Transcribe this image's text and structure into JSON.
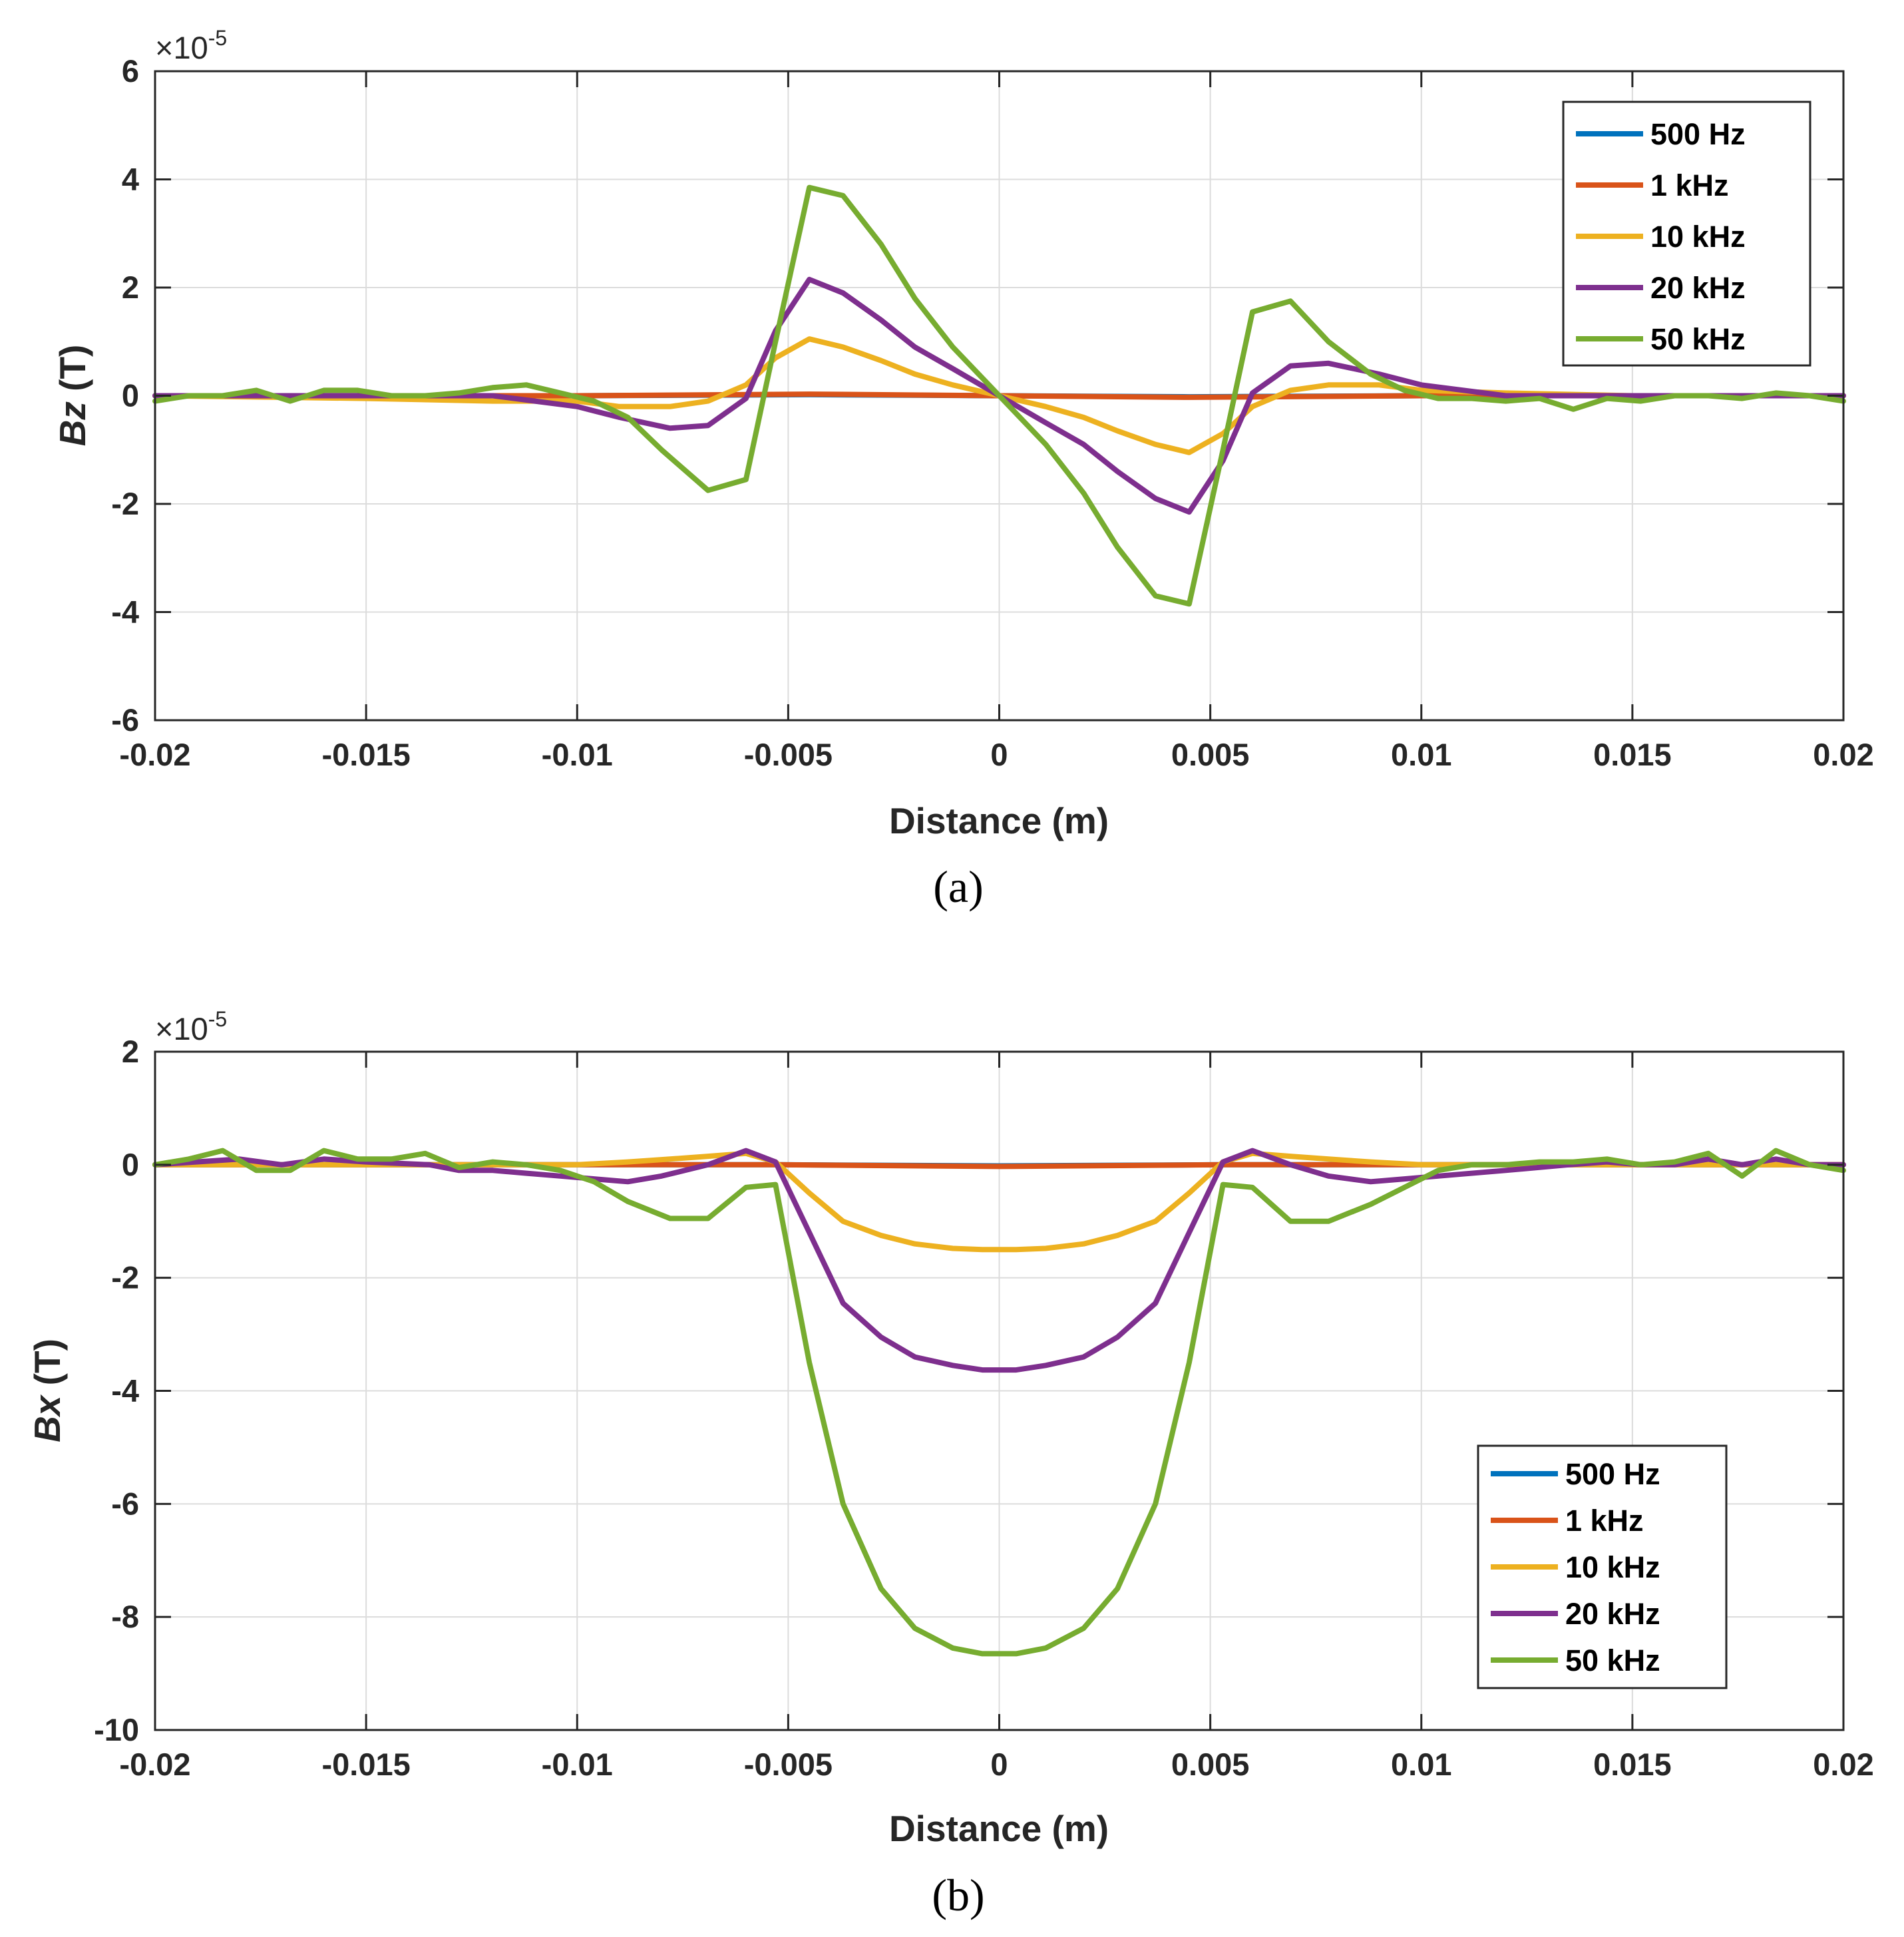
{
  "chart_data": [
    {
      "type": "line",
      "id": "a",
      "caption": "(a)",
      "xlabel": "Distance (m)",
      "ylabel_var": "Bz",
      "ylabel_unit": " (T)",
      "exponent_base": "×10",
      "exponent_power": "-5",
      "xlim": [
        -0.02,
        0.02
      ],
      "ylim": [
        -6,
        6
      ],
      "xticks": [
        -0.02,
        -0.015,
        -0.01,
        -0.005,
        0,
        0.005,
        0.01,
        0.015,
        0.02
      ],
      "xtick_labels": [
        "-0.02",
        "-0.015",
        "-0.01",
        "-0.005",
        "0",
        "0.005",
        "0.01",
        "0.015",
        "0.02"
      ],
      "yticks": [
        -6,
        -4,
        -2,
        0,
        2,
        4,
        6
      ],
      "ytick_labels": [
        "-6",
        "-4",
        "-2",
        "0",
        "2",
        "4",
        "6"
      ],
      "grid": true,
      "legend_position": "top-right",
      "series": [
        {
          "name": "500 Hz",
          "color": "#0072BD",
          "x": [
            -0.02,
            -0.01,
            -0.0045,
            0,
            0.0045,
            0.01,
            0.02
          ],
          "y": [
            0,
            0,
            0.02,
            0,
            -0.02,
            0,
            0
          ]
        },
        {
          "name": "1 kHz",
          "color": "#D95319",
          "x": [
            -0.02,
            -0.01,
            -0.0045,
            0,
            0.0045,
            0.01,
            0.02
          ],
          "y": [
            0,
            0,
            0.03,
            0,
            -0.03,
            0,
            0
          ]
        },
        {
          "name": "10 kHz",
          "color": "#EDB120",
          "x": [
            -0.02,
            -0.015,
            -0.012,
            -0.01,
            -0.009,
            -0.0078,
            -0.0069,
            -0.006,
            -0.0053,
            -0.0045,
            -0.0037,
            -0.0028,
            -0.002,
            -0.0011,
            0,
            0.0011,
            0.002,
            0.0028,
            0.0037,
            0.0045,
            0.0053,
            0.006,
            0.0069,
            0.0078,
            0.009,
            0.01,
            0.012,
            0.015,
            0.02
          ],
          "y": [
            0,
            -0.05,
            -0.1,
            -0.1,
            -0.2,
            -0.2,
            -0.1,
            0.2,
            0.7,
            1.05,
            0.9,
            0.65,
            0.4,
            0.2,
            0,
            -0.2,
            -0.4,
            -0.65,
            -0.9,
            -1.05,
            -0.7,
            -0.2,
            0.1,
            0.2,
            0.2,
            0.1,
            0.05,
            0,
            0
          ]
        },
        {
          "name": "20 kHz",
          "color": "#7E2F8E",
          "x": [
            -0.02,
            -0.017,
            -0.015,
            -0.012,
            -0.011,
            -0.01,
            -0.009,
            -0.0078,
            -0.0069,
            -0.006,
            -0.0053,
            -0.0045,
            -0.0037,
            -0.0028,
            -0.002,
            -0.0011,
            0,
            0.0011,
            0.002,
            0.0028,
            0.0037,
            0.0045,
            0.0053,
            0.006,
            0.0069,
            0.0078,
            0.009,
            0.01,
            0.012,
            0.015,
            0.02
          ],
          "y": [
            0,
            0,
            0,
            0,
            -0.1,
            -0.2,
            -0.4,
            -0.6,
            -0.55,
            -0.05,
            1.2,
            2.15,
            1.9,
            1.4,
            0.9,
            0.5,
            0,
            -0.5,
            -0.9,
            -1.4,
            -1.9,
            -2.15,
            -1.2,
            0.05,
            0.55,
            0.6,
            0.4,
            0.2,
            0,
            0,
            0
          ]
        },
        {
          "name": "50 kHz",
          "color": "#77AC30",
          "x": [
            -0.02,
            -0.0192,
            -0.0184,
            -0.0176,
            -0.0168,
            -0.016,
            -0.0152,
            -0.0144,
            -0.0136,
            -0.0128,
            -0.012,
            -0.0112,
            -0.0104,
            -0.0096,
            -0.0088,
            -0.008,
            -0.0069,
            -0.006,
            -0.0053,
            -0.0045,
            -0.0037,
            -0.0028,
            -0.002,
            -0.0011,
            0,
            0.0011,
            0.002,
            0.0028,
            0.0037,
            0.0045,
            0.0053,
            0.006,
            0.0069,
            0.0078,
            0.0088,
            0.0096,
            0.0104,
            0.0112,
            0.012,
            0.0128,
            0.0136,
            0.0144,
            0.0152,
            0.016,
            0.0168,
            0.0176,
            0.0184,
            0.0192,
            0.02
          ],
          "y": [
            -0.1,
            0,
            0,
            0.1,
            -0.1,
            0.1,
            0.1,
            0,
            0,
            0.05,
            0.15,
            0.2,
            0.05,
            -0.1,
            -0.4,
            -1.0,
            -1.75,
            -1.55,
            1.0,
            3.85,
            3.7,
            2.8,
            1.8,
            0.9,
            0,
            -0.9,
            -1.8,
            -2.8,
            -3.7,
            -3.85,
            -1.0,
            1.55,
            1.75,
            1.0,
            0.4,
            0.1,
            -0.05,
            -0.05,
            -0.1,
            -0.05,
            -0.25,
            -0.05,
            -0.1,
            0,
            0,
            -0.05,
            0.05,
            0,
            -0.1
          ]
        }
      ]
    },
    {
      "type": "line",
      "id": "b",
      "caption": "(b)",
      "xlabel": "Distance (m)",
      "ylabel_var": "Bx",
      "ylabel_unit": " (T)",
      "exponent_base": "×10",
      "exponent_power": "-5",
      "xlim": [
        -0.02,
        0.02
      ],
      "ylim": [
        -10,
        2
      ],
      "xticks": [
        -0.02,
        -0.015,
        -0.01,
        -0.005,
        0,
        0.005,
        0.01,
        0.015,
        0.02
      ],
      "xtick_labels": [
        "-0.02",
        "-0.015",
        "-0.01",
        "-0.005",
        "0",
        "0.005",
        "0.01",
        "0.015",
        "0.02"
      ],
      "yticks": [
        -10,
        -8,
        -6,
        -4,
        -2,
        0,
        2
      ],
      "ytick_labels": [
        "-10",
        "-8",
        "-6",
        "-4",
        "-2",
        "0",
        "2"
      ],
      "grid": true,
      "legend_position": "bottom-right",
      "series": [
        {
          "name": "500 Hz",
          "color": "#0072BD",
          "x": [
            -0.02,
            -0.0053,
            0,
            0.0053,
            0.02
          ],
          "y": [
            0,
            0,
            -0.02,
            0,
            0
          ]
        },
        {
          "name": "1 kHz",
          "color": "#D95319",
          "x": [
            -0.02,
            -0.0053,
            0,
            0.0053,
            0.02
          ],
          "y": [
            0,
            0,
            -0.03,
            0,
            0
          ]
        },
        {
          "name": "10 kHz",
          "color": "#EDB120",
          "x": [
            -0.02,
            -0.01,
            -0.0088,
            -0.0078,
            -0.0069,
            -0.006,
            -0.0053,
            -0.0045,
            -0.0037,
            -0.0028,
            -0.002,
            -0.0011,
            -0.0004,
            0.0004,
            0.0011,
            0.002,
            0.0028,
            0.0037,
            0.0045,
            0.0053,
            0.006,
            0.0069,
            0.0078,
            0.0088,
            0.01,
            0.02
          ],
          "y": [
            0,
            0,
            0.05,
            0.1,
            0.15,
            0.2,
            0.05,
            -0.5,
            -1.0,
            -1.25,
            -1.4,
            -1.48,
            -1.5,
            -1.5,
            -1.48,
            -1.4,
            -1.25,
            -1.0,
            -0.5,
            0.05,
            0.2,
            0.15,
            0.1,
            0.05,
            0,
            0
          ]
        },
        {
          "name": "20 kHz",
          "color": "#7E2F8E",
          "x": [
            -0.02,
            -0.018,
            -0.017,
            -0.016,
            -0.015,
            -0.0135,
            -0.0128,
            -0.012,
            -0.0112,
            -0.0104,
            -0.0096,
            -0.0088,
            -0.008,
            -0.0069,
            -0.006,
            -0.0053,
            -0.0045,
            -0.0037,
            -0.0028,
            -0.002,
            -0.0011,
            -0.0004,
            0.0004,
            0.0011,
            0.002,
            0.0028,
            0.0037,
            0.0045,
            0.0053,
            0.006,
            0.0069,
            0.0078,
            0.0088,
            0.0096,
            0.0104,
            0.012,
            0.0135,
            0.0144,
            0.0152,
            0.016,
            0.0168,
            0.0176,
            0.0184,
            0.0192,
            0.02
          ],
          "y": [
            0,
            0.1,
            0,
            0.1,
            0.05,
            0,
            -0.1,
            -0.1,
            -0.15,
            -0.2,
            -0.25,
            -0.3,
            -0.2,
            0,
            0.25,
            0.05,
            -1.2,
            -2.45,
            -3.05,
            -3.4,
            -3.55,
            -3.63,
            -3.63,
            -3.55,
            -3.4,
            -3.05,
            -2.45,
            -1.2,
            0.05,
            0.25,
            0,
            -0.2,
            -0.3,
            -0.25,
            -0.2,
            -0.1,
            0,
            0.05,
            0,
            0,
            0.1,
            0,
            0.1,
            0,
            0
          ]
        },
        {
          "name": "50 kHz",
          "color": "#77AC30",
          "x": [
            -0.02,
            -0.0192,
            -0.0184,
            -0.0176,
            -0.0168,
            -0.016,
            -0.0152,
            -0.0144,
            -0.0136,
            -0.0128,
            -0.012,
            -0.0112,
            -0.0104,
            -0.0096,
            -0.0088,
            -0.0078,
            -0.0069,
            -0.006,
            -0.0053,
            -0.0045,
            -0.0037,
            -0.0028,
            -0.002,
            -0.0011,
            -0.0004,
            0.0004,
            0.0011,
            0.002,
            0.0028,
            0.0037,
            0.0045,
            0.0053,
            0.006,
            0.0069,
            0.0078,
            0.0088,
            0.0096,
            0.0104,
            0.0112,
            0.012,
            0.0128,
            0.0136,
            0.0144,
            0.0152,
            0.016,
            0.0168,
            0.0176,
            0.0184,
            0.0192,
            0.02
          ],
          "y": [
            0,
            0.1,
            0.25,
            -0.1,
            -0.1,
            0.25,
            0.1,
            0.1,
            0.2,
            -0.05,
            0.05,
            0,
            -0.1,
            -0.3,
            -0.65,
            -0.95,
            -0.95,
            -0.4,
            -0.35,
            -3.5,
            -6.0,
            -7.5,
            -8.2,
            -8.55,
            -8.65,
            -8.65,
            -8.55,
            -8.2,
            -7.5,
            -6.0,
            -3.5,
            -0.35,
            -0.4,
            -1.0,
            -1.0,
            -0.7,
            -0.4,
            -0.1,
            0,
            0,
            0.05,
            0.05,
            0.1,
            0,
            0.05,
            0.2,
            -0.2,
            0.25,
            0,
            -0.1
          ]
        }
      ]
    }
  ]
}
